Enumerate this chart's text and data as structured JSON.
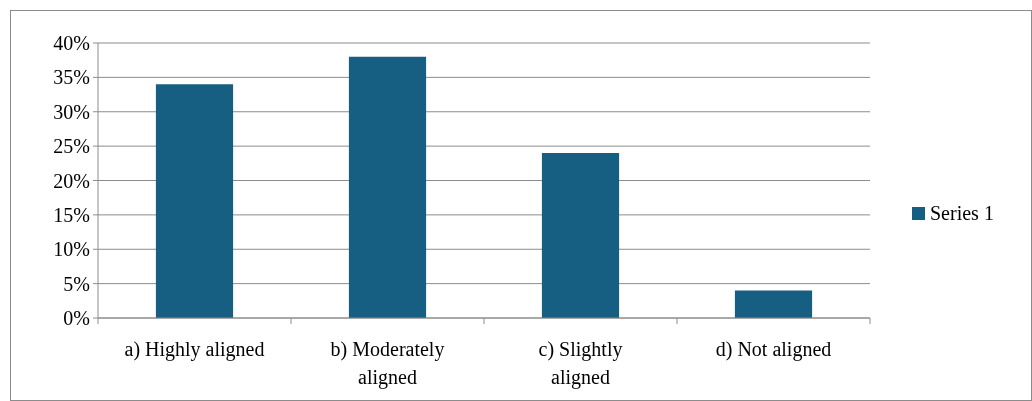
{
  "chart_data": {
    "type": "bar",
    "categories": [
      "a) Highly aligned",
      "b) Moderately aligned",
      "c) Slightly aligned",
      "d) Not aligned"
    ],
    "series": [
      {
        "name": "Series 1",
        "color": "#175f82",
        "values": [
          34,
          38,
          24,
          4
        ]
      }
    ],
    "ylim": [
      0,
      40
    ],
    "yticks": [
      {
        "value": 0,
        "label": "0%"
      },
      {
        "value": 5,
        "label": "5%"
      },
      {
        "value": 10,
        "label": "10%"
      },
      {
        "value": 15,
        "label": "15%"
      },
      {
        "value": 20,
        "label": "20%"
      },
      {
        "value": 25,
        "label": "25%"
      },
      {
        "value": 30,
        "label": "30%"
      },
      {
        "value": 35,
        "label": "35%"
      },
      {
        "value": 40,
        "label": "40%"
      }
    ],
    "grid": "y",
    "legend": "right"
  }
}
